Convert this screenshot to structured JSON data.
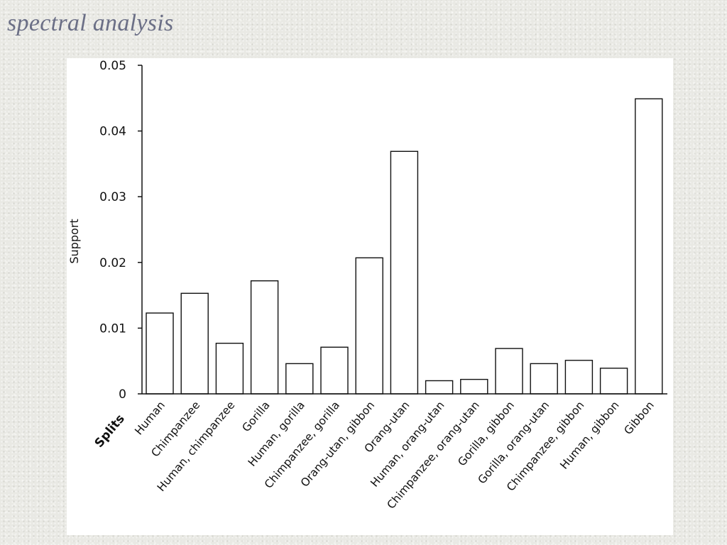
{
  "slide": {
    "title": "spectral analysis"
  },
  "chart_data": {
    "type": "bar",
    "ylabel": "Support",
    "xlabel": "Splits",
    "ylim": [
      0,
      0.05
    ],
    "yticks": [
      "0",
      "0.01",
      "0.02",
      "0.03",
      "0.04",
      "0.05"
    ],
    "ytick_values": [
      0,
      0.01,
      0.02,
      0.03,
      0.04,
      0.05
    ],
    "grid": false,
    "categories": [
      "Human",
      "Chimpanzee",
      "Human, chimpanzee",
      "Gorilla",
      "Human, gorilla",
      "Chimpanzee, gorilla",
      "Orang-utan, gibbon",
      "Orang-utan",
      "Human, orang-utan",
      "Chimpanzee, orang-utan",
      "Gorilla, gibbon",
      "Gorilla, orang-utan",
      "Chimpanzee, gibbon",
      "Human, gibbon",
      "Gibbon"
    ],
    "values": [
      0.0123,
      0.0153,
      0.0077,
      0.0172,
      0.0046,
      0.0071,
      0.0207,
      0.0369,
      0.002,
      0.0022,
      0.0069,
      0.0046,
      0.0051,
      0.0039,
      0.0449
    ]
  }
}
